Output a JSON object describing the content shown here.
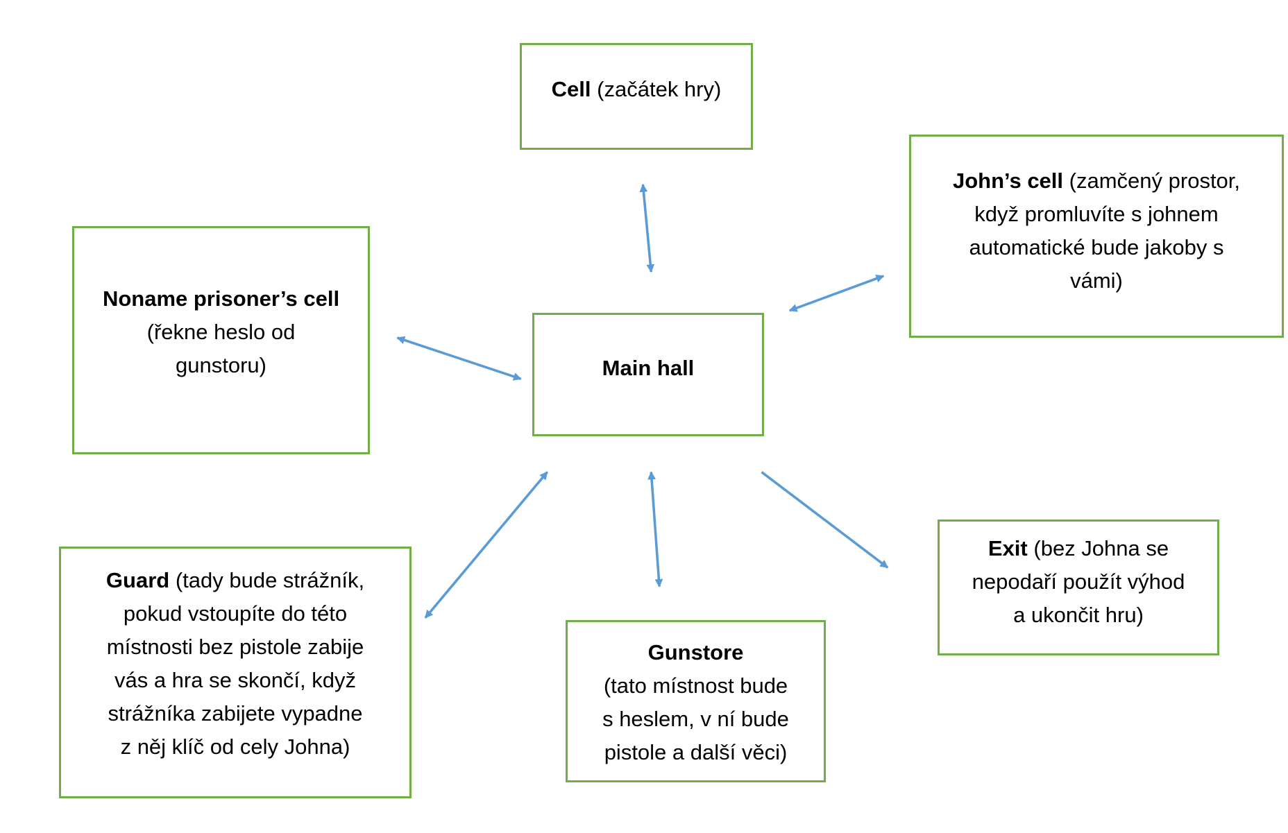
{
  "diagram": {
    "edge_color": "#5b9bd5",
    "node_border_color": "#70ad47",
    "nodes": {
      "cell": {
        "title": "Cell",
        "desc": "(začátek hry)"
      },
      "johns_cell": {
        "title": "John’s cell",
        "desc_line1": "(zamčený prostor,",
        "desc_line2": "když promluvíte s johnem",
        "desc_line3": "automatické bude jakoby s",
        "desc_line4": "vámi)"
      },
      "noname_cell": {
        "title": "Noname prisoner’s cell",
        "desc_line1": "(řekne heslo od",
        "desc_line2": "gunstoru)"
      },
      "main_hall": {
        "title": "Main hall"
      },
      "guard": {
        "title": "Guard",
        "desc_line1": "(tady bude strážník,",
        "desc_line2": "pokud vstoupíte do této",
        "desc_line3": "místnosti bez pistole zabije",
        "desc_line4": "vás a hra se skončí, když",
        "desc_line5": "strážníka zabijete vypadne",
        "desc_line6": "z něj klíč od cely Johna)"
      },
      "gunstore": {
        "title": "Gunstore",
        "desc_line1": "(tato místnost bude",
        "desc_line2": "s heslem, v ní bude",
        "desc_line3": "pistole a další věci)"
      },
      "exit": {
        "title": "Exit",
        "desc_line1": "(bez Johna se",
        "desc_line2": "nepodaří použít výhod",
        "desc_line3": "a ukončit hru)"
      }
    },
    "edges": [
      {
        "from": "main_hall",
        "to": "cell",
        "direction": "both"
      },
      {
        "from": "main_hall",
        "to": "johns_cell",
        "direction": "both"
      },
      {
        "from": "main_hall",
        "to": "noname_cell",
        "direction": "both"
      },
      {
        "from": "main_hall",
        "to": "guard",
        "direction": "both"
      },
      {
        "from": "main_hall",
        "to": "gunstore",
        "direction": "both"
      },
      {
        "from": "main_hall",
        "to": "exit",
        "direction": "forward"
      }
    ]
  }
}
